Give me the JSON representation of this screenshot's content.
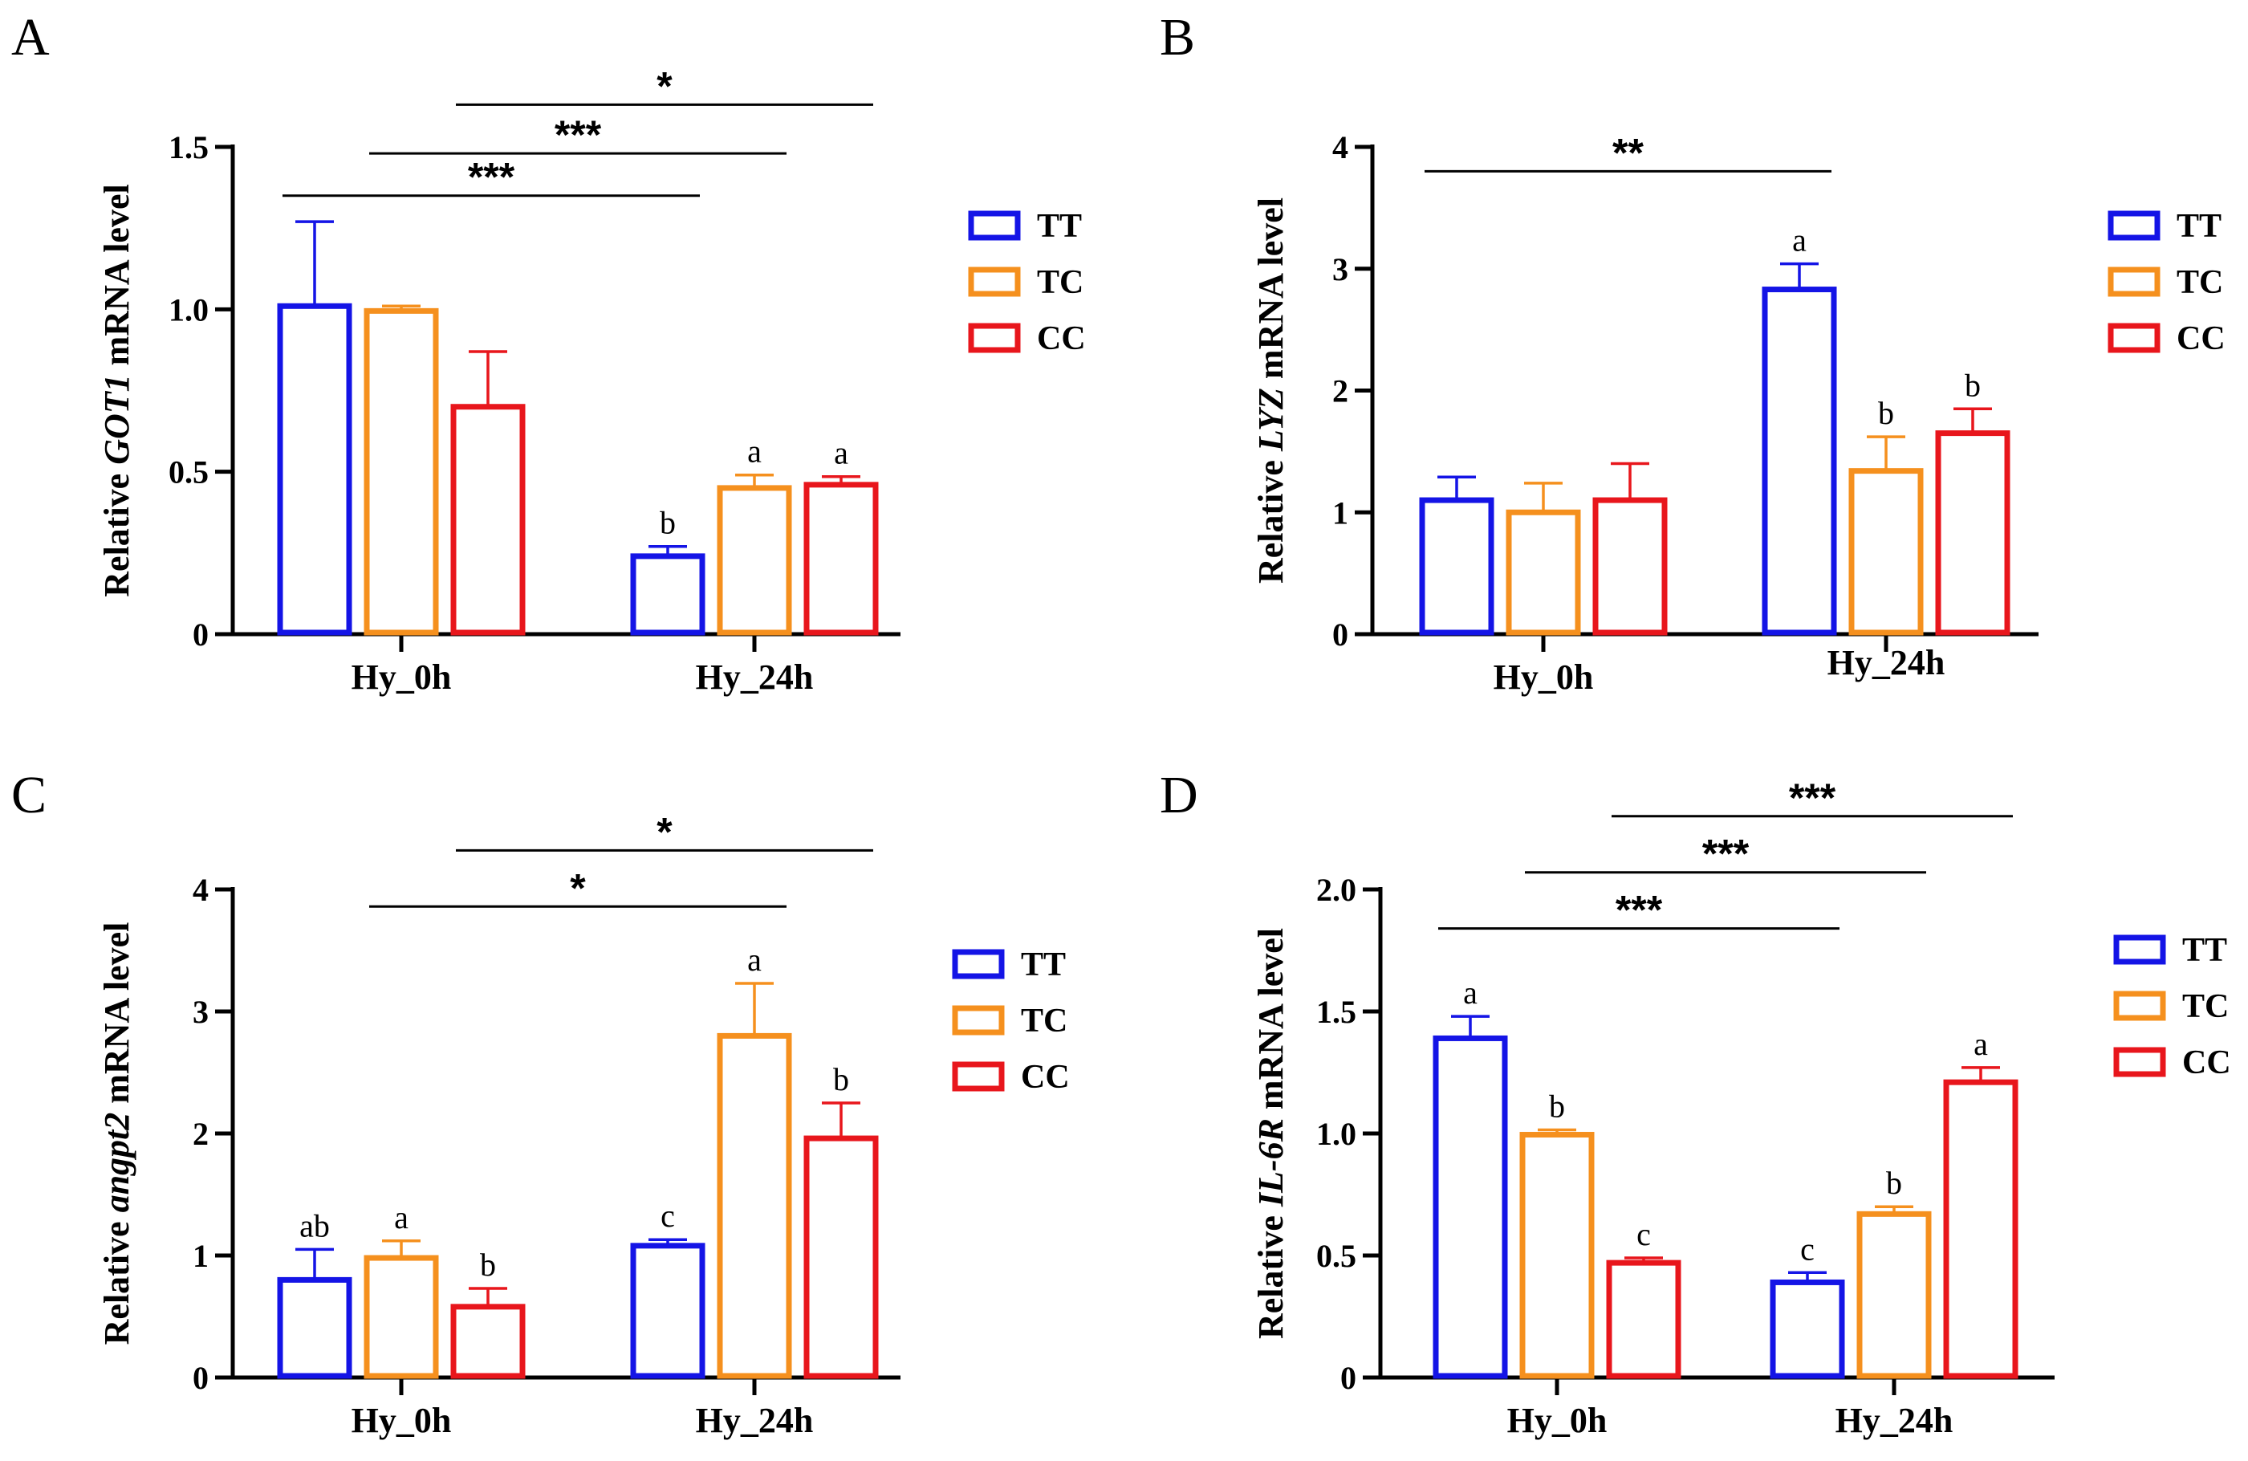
{
  "colors": {
    "TT": "#1414e6",
    "TC": "#f5901e",
    "CC": "#e8161c"
  },
  "chart_data": [
    {
      "type": "bar",
      "panel": "A",
      "ylabel_prefix": "Relative ",
      "gene": "GOT1",
      "ylabel_suffix": " mRNA level",
      "ylim": [
        0,
        1.5
      ],
      "yticks": [
        0,
        0.5,
        1.0,
        1.5
      ],
      "ytick_labels": [
        "0",
        "0.5",
        "1.0",
        "1.5"
      ],
      "categories": [
        "Hy_0h",
        "Hy_24h"
      ],
      "legend": [
        "TT",
        "TC",
        "CC"
      ],
      "series": [
        {
          "name": "TT",
          "values": [
            1.01,
            0.24
          ],
          "errors": [
            0.26,
            0.03
          ],
          "letters": [
            "",
            "b"
          ]
        },
        {
          "name": "TC",
          "values": [
            0.995,
            0.45
          ],
          "errors": [
            0.015,
            0.04
          ],
          "letters": [
            "",
            "a"
          ]
        },
        {
          "name": "CC",
          "values": [
            0.7,
            0.46
          ],
          "errors": [
            0.17,
            0.025
          ],
          "letters": [
            "",
            "a"
          ]
        }
      ],
      "significance": [
        {
          "from": [
            0,
            0
          ],
          "to": [
            1,
            0
          ],
          "label": "***",
          "level": 1.35
        },
        {
          "from": [
            0,
            1
          ],
          "to": [
            1,
            1
          ],
          "label": "***",
          "level": 1.48
        },
        {
          "from": [
            0,
            2
          ],
          "to": [
            1,
            2
          ],
          "label": "*",
          "level": 1.63
        }
      ]
    },
    {
      "type": "bar",
      "panel": "B",
      "ylabel_prefix": "Relative ",
      "gene": "LYZ",
      "ylabel_suffix": " mRNA level",
      "ylim": [
        0,
        4
      ],
      "yticks": [
        0,
        1,
        2,
        3,
        4
      ],
      "ytick_labels": [
        "0",
        "1",
        "2",
        "3",
        "4"
      ],
      "categories": [
        "Hy_0h",
        "Hy_24h"
      ],
      "legend": [
        "TT",
        "TC",
        "CC"
      ],
      "series": [
        {
          "name": "TT",
          "values": [
            1.1,
            2.83
          ],
          "errors": [
            0.19,
            0.21
          ],
          "letters": [
            "",
            "a"
          ]
        },
        {
          "name": "TC",
          "values": [
            1.0,
            1.34
          ],
          "errors": [
            0.24,
            0.28
          ],
          "letters": [
            "",
            "b"
          ]
        },
        {
          "name": "CC",
          "values": [
            1.1,
            1.65
          ],
          "errors": [
            0.3,
            0.2
          ],
          "letters": [
            "",
            "b"
          ]
        }
      ],
      "significance": [
        {
          "from": [
            0,
            0
          ],
          "to": [
            1,
            0
          ],
          "label": "**",
          "level": 3.8
        }
      ]
    },
    {
      "type": "bar",
      "panel": "C",
      "ylabel_prefix": "Relative ",
      "gene": "angpt2",
      "ylabel_suffix": " mRNA level",
      "ylim": [
        0,
        4
      ],
      "yticks": [
        0,
        1,
        2,
        3,
        4
      ],
      "ytick_labels": [
        "0",
        "1",
        "2",
        "3",
        "4"
      ],
      "categories": [
        "Hy_0h",
        "Hy_24h"
      ],
      "legend": [
        "TT",
        "TC",
        "CC"
      ],
      "series": [
        {
          "name": "TT",
          "values": [
            0.8,
            1.08
          ],
          "errors": [
            0.25,
            0.05
          ],
          "letters": [
            "ab",
            "c"
          ]
        },
        {
          "name": "TC",
          "values": [
            0.98,
            2.8
          ],
          "errors": [
            0.14,
            0.43
          ],
          "letters": [
            "a",
            "a"
          ]
        },
        {
          "name": "CC",
          "values": [
            0.58,
            1.96
          ],
          "errors": [
            0.15,
            0.29
          ],
          "letters": [
            "b",
            "b"
          ]
        }
      ],
      "significance": [
        {
          "from": [
            0,
            1
          ],
          "to": [
            1,
            1
          ],
          "label": "*",
          "level": 3.86
        },
        {
          "from": [
            0,
            2
          ],
          "to": [
            1,
            2
          ],
          "label": "*",
          "level": 4.32
        }
      ]
    },
    {
      "type": "bar",
      "panel": "D",
      "ylabel_prefix": "Relative ",
      "gene": "IL-6R",
      "ylabel_suffix": " mRNA level",
      "ylim": [
        0,
        2.0
      ],
      "yticks": [
        0,
        0.5,
        1.0,
        1.5,
        2.0
      ],
      "ytick_labels": [
        "0",
        "0.5",
        "1.0",
        "1.5",
        "2.0"
      ],
      "categories": [
        "Hy_0h",
        "Hy_24h"
      ],
      "legend": [
        "TT",
        "TC",
        "CC"
      ],
      "series": [
        {
          "name": "TT",
          "values": [
            1.39,
            0.39
          ],
          "errors": [
            0.09,
            0.04
          ],
          "letters": [
            "a",
            "c"
          ]
        },
        {
          "name": "TC",
          "values": [
            0.995,
            0.67
          ],
          "errors": [
            0.02,
            0.03
          ],
          "letters": [
            "b",
            "b"
          ]
        },
        {
          "name": "CC",
          "values": [
            0.47,
            1.21
          ],
          "errors": [
            0.02,
            0.06
          ],
          "letters": [
            "c",
            "a"
          ]
        }
      ],
      "significance": [
        {
          "from": [
            0,
            0
          ],
          "to": [
            1,
            0
          ],
          "label": "***",
          "level": 1.84
        },
        {
          "from": [
            0,
            1
          ],
          "to": [
            1,
            1
          ],
          "label": "***",
          "level": 2.07
        },
        {
          "from": [
            0,
            2
          ],
          "to": [
            1,
            2
          ],
          "label": "***",
          "level": 2.3
        }
      ]
    }
  ]
}
